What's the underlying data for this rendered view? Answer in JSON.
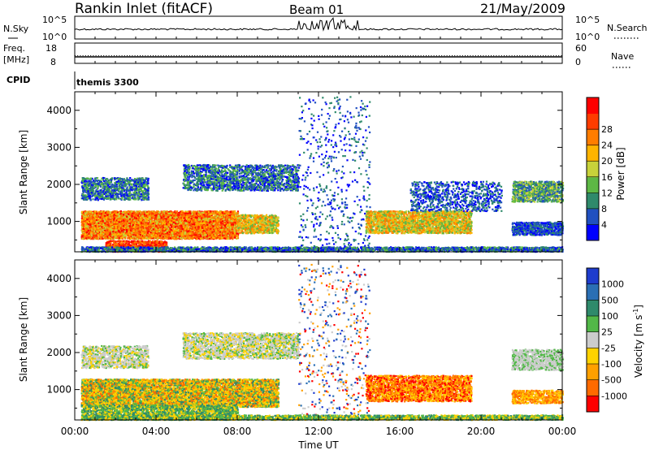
{
  "header": {
    "station": "Rankin Inlet (fitACF)",
    "beam": "Beam 01",
    "date": "21/May/2009"
  },
  "sky_panel": {
    "left_label": "N.Sky",
    "left_ticks": [
      "10^5",
      "10^0"
    ],
    "right_ticks": [
      "10^5",
      "10^0"
    ],
    "right_label": "N.Search"
  },
  "freq_panel": {
    "left_label_line1": "Freq.",
    "left_label_line2": "[MHz]",
    "left_ticks": [
      "18",
      "8"
    ],
    "right_ticks": [
      "60",
      "0"
    ],
    "right_label": "Nave"
  },
  "cpid_panel": {
    "label": "CPID",
    "mode_text": "themis 3300"
  },
  "chart_data": [
    {
      "type": "heatmap",
      "title": "",
      "ylabel": "Slant Range [km]",
      "xlabel": "",
      "x_ticks": [
        "00:00",
        "04:00",
        "08:00",
        "12:00",
        "16:00",
        "20:00",
        "00:00"
      ],
      "x_range_hours": [
        0,
        24
      ],
      "y_ticks": [
        "1000",
        "2000",
        "3000",
        "4000"
      ],
      "ylim": [
        180,
        4500
      ],
      "colorbar": {
        "label": "Power [dB]",
        "ticks": [
          "4",
          "8",
          "12",
          "16",
          "20",
          "24",
          "28"
        ],
        "colors": [
          "#0000ff",
          "#2050c0",
          "#2f8a6b",
          "#5db845",
          "#c8d23a",
          "#ffb400",
          "#ff7d00",
          "#ff3c00",
          "#ff0000"
        ]
      }
    },
    {
      "type": "heatmap",
      "title": "",
      "ylabel": "Slant Range [km]",
      "xlabel": "Time UT",
      "x_ticks": [
        "00:00",
        "04:00",
        "08:00",
        "12:00",
        "16:00",
        "20:00",
        "00:00"
      ],
      "x_range_hours": [
        0,
        24
      ],
      "y_ticks": [
        "1000",
        "2000",
        "3000",
        "4000"
      ],
      "ylim": [
        180,
        4500
      ],
      "colorbar": {
        "label": "Velocity [m s",
        "label_superscript": "-1",
        "label_close": "]",
        "ticks": [
          "1000",
          "500",
          "100",
          "25",
          "-25",
          "-100",
          "-500",
          "-1000"
        ],
        "colors": [
          "#1e3ccd",
          "#2a6fb4",
          "#2f8a6b",
          "#52b848",
          "#cccccc",
          "#ffd200",
          "#ffa000",
          "#ff6a00",
          "#ff0000"
        ]
      }
    }
  ]
}
